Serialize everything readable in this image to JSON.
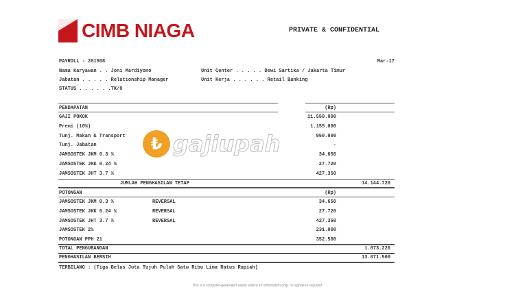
{
  "header": {
    "brand": "CIMB NIAGA",
    "confidential": "PRIVATE & CONFIDENTIAL"
  },
  "info": {
    "payroll": "PAYROLL - 201508",
    "period": "Mar-17",
    "nama": "Nama Karyawan . . Joni Mardiyono",
    "jabatan": "Jabatan . . . . . Relationship Manager",
    "status": "STATUS . . . . . .TK/0",
    "unit_center": "Unit Center . . . . . Dewi Sartika / Jakarta Timur",
    "unit_kerja": "Unit Kerja . . . . . . Retail Banking"
  },
  "pendapatan": {
    "title": "PENDAPATAN",
    "currency": "(Rp)",
    "rows": [
      {
        "label": "GAJI POKOK",
        "amount": "11.550.000"
      },
      {
        "label": "Premi (10%)",
        "amount": "1.155.000"
      },
      {
        "label": "Tunj. Makan & Transport",
        "amount": "950.000"
      },
      {
        "label": "Tunj. Jabatan",
        "amount": "-"
      },
      {
        "label": "JAMSOSTEK JKM 0.3 %",
        "amount": "34.650"
      },
      {
        "label": "JAMSOSTEK JKK 0.24 %",
        "amount": "27.720"
      },
      {
        "label": "JAMSOSTEK JHT 3.7 %",
        "amount": "427.350"
      }
    ],
    "total_label": "JUMLAH PENGHASILAN TETAP",
    "total": "14.144.720"
  },
  "potongan": {
    "title": "POTONGAN",
    "currency": "(Rp)",
    "rows": [
      {
        "label": "JAMSOSTEK JKM 0.3 %",
        "note": "REVERSAL",
        "amount": "34.650"
      },
      {
        "label": "JAMSOSTEK JKK 0.24 %",
        "note": "REVERSAL",
        "amount": "27.720"
      },
      {
        "label": "JAMSOSTEK JHT 3.7 %",
        "note": "REVERSAL",
        "amount": "427.350"
      },
      {
        "label": "JAMSOSTEK 2%",
        "note": "",
        "amount": "231.000"
      },
      {
        "label": "POTONGAN PPH 21",
        "note": "",
        "amount": "352.500"
      }
    ],
    "total_label": "TOTAL PENGURANGAN",
    "total": "1.073.220"
  },
  "net": {
    "label": "PENGHASILAN BERSIH",
    "amount": "13.071.500"
  },
  "terbilang": "TERBILANG : (Tiga Belas Juta Tujuh Puluh Satu Ribu Lima Ratus Rupiah)",
  "footer": "This is a computer-generated salary advice for information only, no signature required",
  "watermark": "gajiupah",
  "colors": {
    "brand": "#c4161c",
    "watermark": "#f0a024"
  }
}
